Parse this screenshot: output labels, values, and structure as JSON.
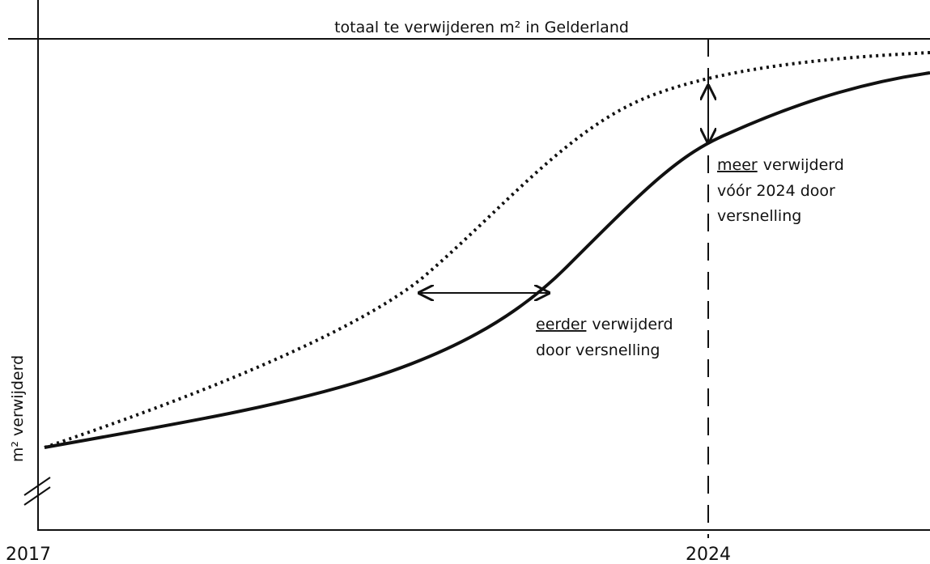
{
  "title_line": "totaal te verwijderen m² in Gelderland",
  "y_axis_label": "m² verwijderd",
  "x_labels": [
    "2017",
    "2024"
  ],
  "annotations": [
    {
      "emphasis": "meer",
      "rest": "verwijderd",
      "lines": [
        "vóór 2024 door",
        "versnelling"
      ]
    },
    {
      "emphasis": "eerder",
      "rest": "verwijderd",
      "lines": [
        "door versnelling"
      ]
    }
  ]
}
